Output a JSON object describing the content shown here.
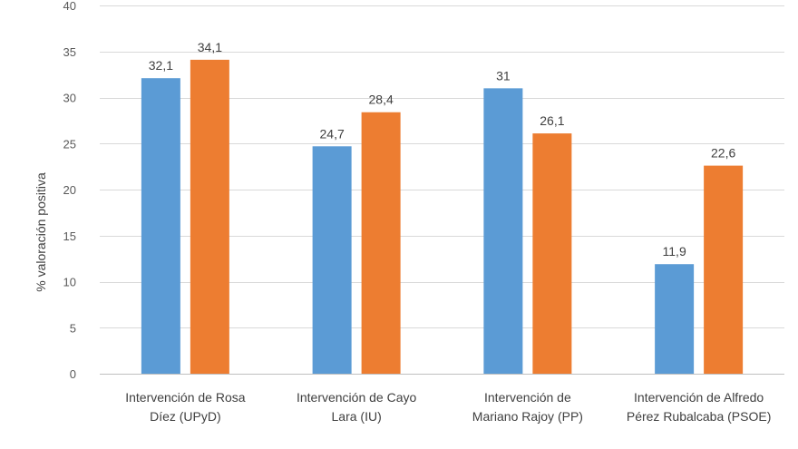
{
  "chart_data": {
    "type": "bar",
    "ylabel": "% valoración positiva",
    "ylim": [
      0,
      40
    ],
    "yticks": [
      0,
      5,
      10,
      15,
      20,
      25,
      30,
      35,
      40
    ],
    "grid": true,
    "categories": [
      [
        "Intervención de Rosa",
        "Díez (UPyD)"
      ],
      [
        "Intervención de Cayo",
        "Lara (IU)"
      ],
      [
        "Intervención de",
        "Mariano Rajoy (PP)"
      ],
      [
        "Intervención de Alfredo",
        "Pérez Rubalcaba (PSOE)"
      ]
    ],
    "series": [
      {
        "color": "#5b9bd5",
        "values": [
          32.1,
          24.7,
          31,
          11.9
        ],
        "labels": [
          "32,1",
          "24,7",
          "31",
          "11,9"
        ]
      },
      {
        "color": "#ed7d31",
        "values": [
          34.1,
          28.4,
          26.1,
          22.6
        ],
        "labels": [
          "34,1",
          "28,4",
          "26,1",
          "22,6"
        ]
      }
    ]
  }
}
